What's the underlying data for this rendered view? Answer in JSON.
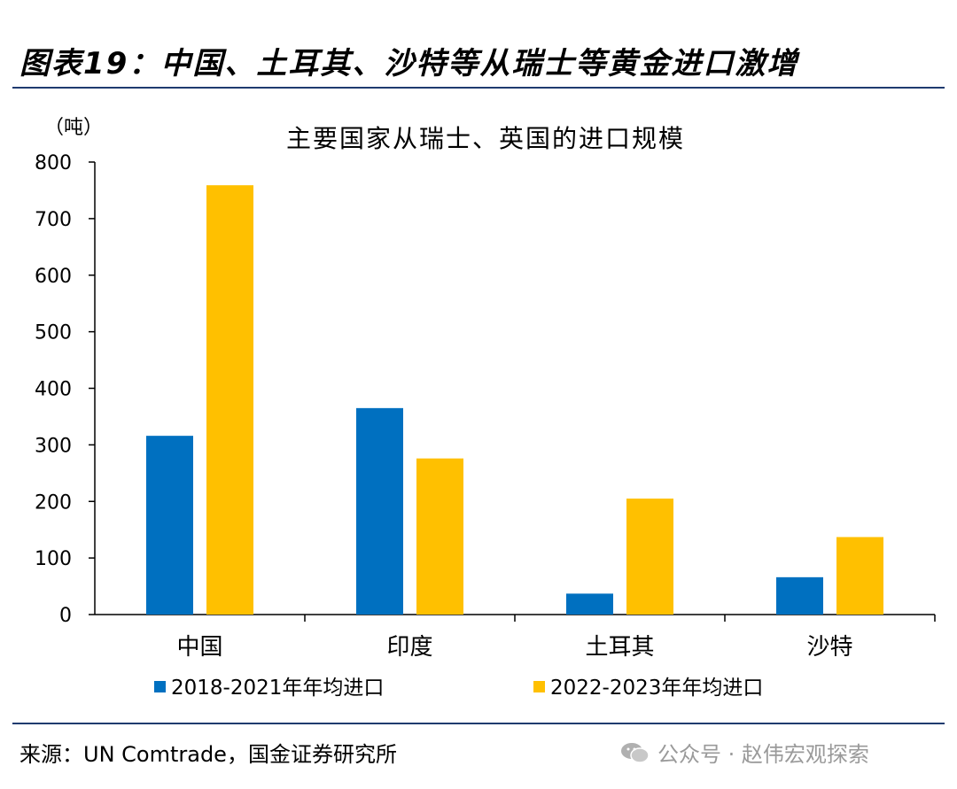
{
  "figure_title": "图表19：中国、土耳其、沙特等从瑞士等黄金进口激增",
  "source": "来源：UN Comtrade，国金证券研究所",
  "watermark": "公众号 · 赵伟宏观探索",
  "colors": {
    "series1": "#0070C0",
    "series2": "#FFC000",
    "rule": "#1f3b6f"
  },
  "chart_data": {
    "type": "bar",
    "title": "主要国家从瑞士、英国的进口规模",
    "ylabel": "（吨）",
    "categories": [
      "中国",
      "印度",
      "土耳其",
      "沙特"
    ],
    "series": [
      {
        "name": "2018-2021年年均进口",
        "values": [
          316,
          365,
          37,
          66
        ]
      },
      {
        "name": "2022-2023年年均进口",
        "values": [
          759,
          276,
          205,
          137
        ]
      }
    ],
    "ylim": [
      0,
      800
    ],
    "yticks": [
      0,
      100,
      200,
      300,
      400,
      500,
      600,
      700,
      800
    ],
    "grid": false,
    "legend": "bottom"
  }
}
